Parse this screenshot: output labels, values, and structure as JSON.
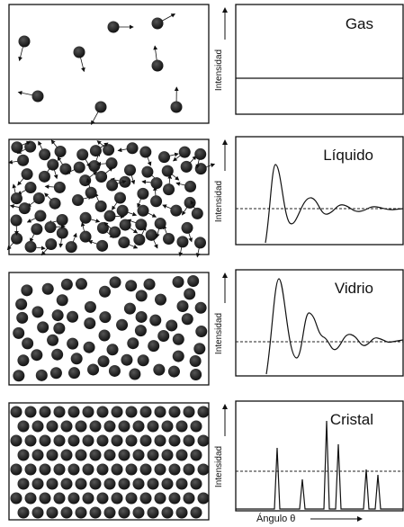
{
  "panels": [
    {
      "label": "Gas",
      "y_axis_label": "Intensidad"
    },
    {
      "label": "Líquido",
      "y_axis_label": "Intensidad"
    },
    {
      "label": "Vidrio",
      "y_axis_label": "Intensidad"
    },
    {
      "label": "Cristal",
      "y_axis_label": "Intensidad"
    }
  ],
  "x_axis_label": "Ángulo θ"
}
